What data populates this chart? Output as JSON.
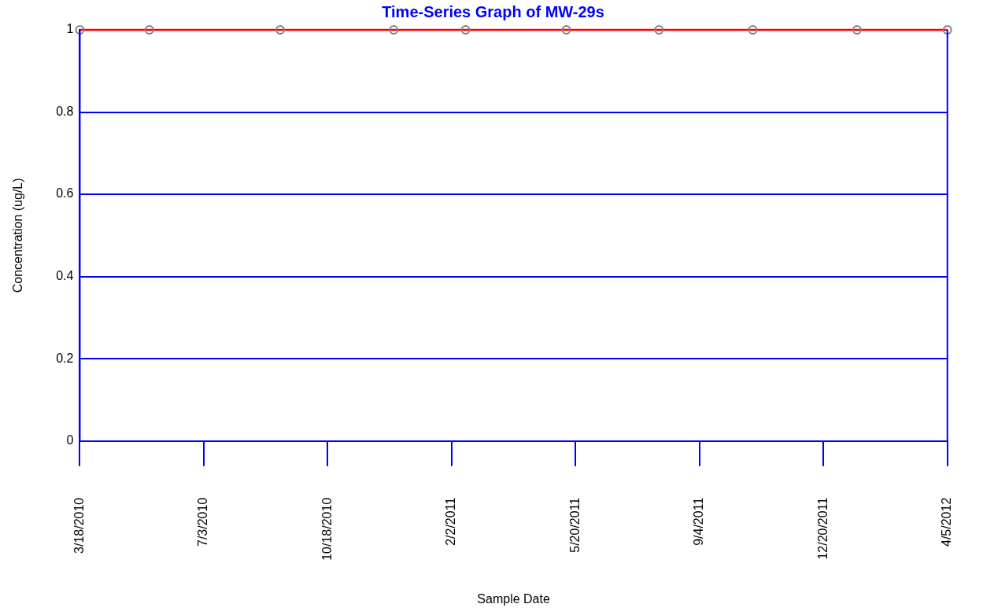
{
  "chart_data": {
    "type": "line",
    "title": "Time-Series Graph of MW-29s",
    "xlabel": "Sample Date",
    "ylabel": "Concentration (ug/L)",
    "x": [
      "2010-03-18",
      "2010-05-17",
      "2010-09-07",
      "2010-12-14",
      "2011-02-14",
      "2011-05-12",
      "2011-07-31",
      "2011-10-20",
      "2012-01-18",
      "2012-04-05"
    ],
    "series": [
      {
        "color": "#ff0000",
        "values": [
          1,
          1,
          1,
          1,
          1,
          1,
          1,
          1,
          1,
          1
        ]
      }
    ],
    "xlim": [
      "2010-03-18",
      "2012-04-05"
    ],
    "xticks": [
      {
        "value": "2010-03-18",
        "label": "3/18/2010"
      },
      {
        "value": "2010-07-03",
        "label": "7/3/2010"
      },
      {
        "value": "2010-10-18",
        "label": "10/18/2010"
      },
      {
        "value": "2011-02-02",
        "label": "2/2/2011"
      },
      {
        "value": "2011-05-20",
        "label": "5/20/2011"
      },
      {
        "value": "2011-09-04",
        "label": "9/4/2011"
      },
      {
        "value": "2011-12-20",
        "label": "12/20/2011"
      },
      {
        "value": "2012-04-05",
        "label": "4/5/2012"
      }
    ],
    "ylim": [
      0,
      1
    ],
    "yticks": [
      0,
      0.2,
      0.4,
      0.6,
      0.8,
      1
    ],
    "grid": "y",
    "legend": false,
    "marker": "circle",
    "line_style": "solid"
  }
}
